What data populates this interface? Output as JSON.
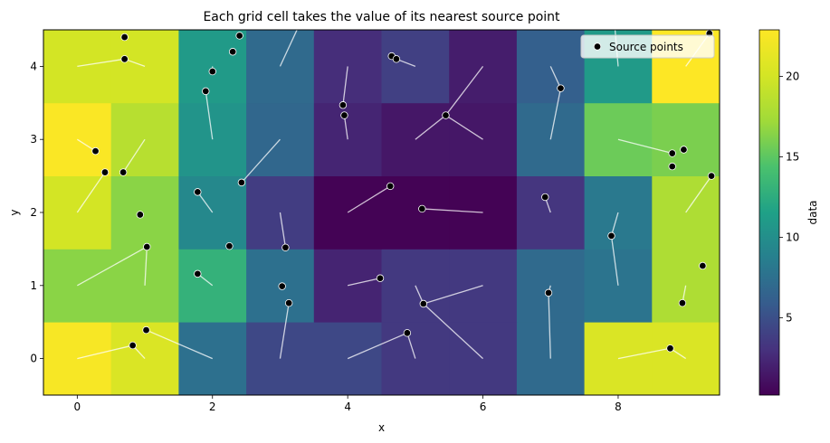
{
  "chart_data": {
    "type": "heatmap",
    "title": "Each grid cell takes the value of its nearest source point",
    "xlabel": "x",
    "ylabel": "y",
    "colorbar_label": "data",
    "colormap": "viridis",
    "xlim": [
      -0.5,
      9.5
    ],
    "ylim": [
      -0.5,
      4.5
    ],
    "clim": [
      0.2,
      22.9
    ],
    "x_ticks": [
      "0",
      "2",
      "4",
      "6",
      "8"
    ],
    "x_tick_values": [
      0,
      2,
      4,
      6,
      8
    ],
    "y_ticks": [
      "0",
      "1",
      "2",
      "3",
      "4"
    ],
    "y_tick_values": [
      0,
      1,
      2,
      3,
      4
    ],
    "colorbar_ticks": [
      "5",
      "10",
      "15",
      "20"
    ],
    "colorbar_tick_values": [
      5,
      10,
      15,
      20
    ],
    "grid": false,
    "legend": {
      "placement": "top-right",
      "entries": [
        "Source points"
      ]
    },
    "grid_values": [
      [
        22.5,
        20.5,
        7.5,
        4.5,
        4.5,
        3.5,
        3.5,
        7.0,
        20.5,
        20.5
      ],
      [
        16.5,
        16.5,
        13.0,
        7.5,
        2.2,
        3.5,
        3.5,
        7.0,
        7.8,
        18.0
      ],
      [
        20.0,
        16.5,
        9.5,
        3.8,
        0.3,
        0.3,
        0.3,
        3.3,
        8.2,
        18.0
      ],
      [
        22.7,
        18.5,
        10.5,
        6.8,
        2.3,
        1.5,
        1.5,
        7.0,
        15.5,
        16.0
      ],
      [
        20.0,
        20.0,
        11.0,
        7.0,
        2.8,
        4.0,
        1.8,
        6.2,
        11.0,
        22.9
      ]
    ],
    "source_points": [
      {
        "x": 0.7,
        "y": 4.4
      },
      {
        "x": 0.7,
        "y": 4.1
      },
      {
        "x": 2.4,
        "y": 4.42
      },
      {
        "x": 2.3,
        "y": 4.2
      },
      {
        "x": 2.0,
        "y": 3.93
      },
      {
        "x": 1.9,
        "y": 3.66
      },
      {
        "x": 4.65,
        "y": 4.14
      },
      {
        "x": 4.72,
        "y": 4.1
      },
      {
        "x": 3.93,
        "y": 3.47
      },
      {
        "x": 3.95,
        "y": 3.33
      },
      {
        "x": 7.15,
        "y": 3.7
      },
      {
        "x": 9.35,
        "y": 4.45
      },
      {
        "x": 5.45,
        "y": 3.33
      },
      {
        "x": 0.27,
        "y": 2.84
      },
      {
        "x": 0.41,
        "y": 2.55
      },
      {
        "x": 0.68,
        "y": 2.55
      },
      {
        "x": 8.8,
        "y": 2.81
      },
      {
        "x": 8.97,
        "y": 2.86
      },
      {
        "x": 8.8,
        "y": 2.63
      },
      {
        "x": 9.38,
        "y": 2.5
      },
      {
        "x": 2.43,
        "y": 2.41
      },
      {
        "x": 1.78,
        "y": 2.28
      },
      {
        "x": 4.63,
        "y": 2.36
      },
      {
        "x": 5.1,
        "y": 2.05
      },
      {
        "x": 6.92,
        "y": 2.21
      },
      {
        "x": 0.93,
        "y": 1.97
      },
      {
        "x": 7.9,
        "y": 1.68
      },
      {
        "x": 1.03,
        "y": 1.53
      },
      {
        "x": 2.25,
        "y": 1.54
      },
      {
        "x": 3.08,
        "y": 1.52
      },
      {
        "x": 9.25,
        "y": 1.27
      },
      {
        "x": 1.78,
        "y": 1.16
      },
      {
        "x": 3.03,
        "y": 0.99
      },
      {
        "x": 4.48,
        "y": 1.1
      },
      {
        "x": 6.97,
        "y": 0.9
      },
      {
        "x": 3.13,
        "y": 0.76
      },
      {
        "x": 5.12,
        "y": 0.75
      },
      {
        "x": 8.95,
        "y": 0.76
      },
      {
        "x": 1.02,
        "y": 0.39
      },
      {
        "x": 0.82,
        "y": 0.18
      },
      {
        "x": 4.88,
        "y": 0.35
      },
      {
        "x": 8.77,
        "y": 0.14
      }
    ],
    "connector_lines": [
      {
        "from": [
          0.0,
          4.0
        ],
        "to": [
          0.7,
          4.1
        ]
      },
      {
        "from": [
          1.0,
          4.0
        ],
        "to": [
          0.7,
          4.1
        ]
      },
      {
        "from": [
          2.0,
          4.0
        ],
        "to": [
          2.0,
          3.93
        ]
      },
      {
        "from": [
          2.0,
          3.0
        ],
        "to": [
          1.9,
          3.66
        ]
      },
      {
        "from": [
          3.0,
          4.0
        ],
        "to": [
          3.3,
          4.6
        ]
      },
      {
        "from": [
          4.0,
          4.0
        ],
        "to": [
          3.93,
          3.47
        ]
      },
      {
        "from": [
          4.0,
          3.0
        ],
        "to": [
          3.95,
          3.33
        ]
      },
      {
        "from": [
          5.0,
          4.0
        ],
        "to": [
          4.72,
          4.1
        ]
      },
      {
        "from": [
          5.0,
          3.0
        ],
        "to": [
          5.45,
          3.33
        ]
      },
      {
        "from": [
          6.0,
          4.0
        ],
        "to": [
          5.45,
          3.33
        ]
      },
      {
        "from": [
          6.0,
          3.0
        ],
        "to": [
          5.45,
          3.33
        ]
      },
      {
        "from": [
          7.0,
          4.0
        ],
        "to": [
          7.15,
          3.7
        ]
      },
      {
        "from": [
          7.0,
          3.0
        ],
        "to": [
          7.15,
          3.7
        ]
      },
      {
        "from": [
          8.0,
          4.0
        ],
        "to": [
          7.95,
          4.55
        ]
      },
      {
        "from": [
          9.0,
          4.0
        ],
        "to": [
          9.35,
          4.45
        ]
      },
      {
        "from": [
          0.0,
          3.0
        ],
        "to": [
          0.27,
          2.84
        ]
      },
      {
        "from": [
          1.0,
          3.0
        ],
        "to": [
          0.68,
          2.55
        ]
      },
      {
        "from": [
          0.0,
          2.0
        ],
        "to": [
          0.41,
          2.55
        ]
      },
      {
        "from": [
          3.0,
          3.0
        ],
        "to": [
          2.43,
          2.41
        ]
      },
      {
        "from": [
          2.0,
          2.0
        ],
        "to": [
          1.78,
          2.28
        ]
      },
      {
        "from": [
          8.0,
          3.0
        ],
        "to": [
          8.8,
          2.81
        ]
      },
      {
        "from": [
          9.0,
          2.0
        ],
        "to": [
          9.38,
          2.5
        ]
      },
      {
        "from": [
          4.0,
          2.0
        ],
        "to": [
          4.63,
          2.36
        ]
      },
      {
        "from": [
          6.0,
          2.0
        ],
        "to": [
          5.1,
          2.05
        ]
      },
      {
        "from": [
          7.0,
          2.0
        ],
        "to": [
          6.92,
          2.21
        ]
      },
      {
        "from": [
          3.0,
          2.0
        ],
        "to": [
          3.08,
          1.52
        ]
      },
      {
        "from": [
          8.0,
          2.0
        ],
        "to": [
          7.9,
          1.68
        ]
      },
      {
        "from": [
          8.0,
          1.0
        ],
        "to": [
          7.9,
          1.68
        ]
      },
      {
        "from": [
          0.0,
          1.0
        ],
        "to": [
          1.03,
          1.53
        ]
      },
      {
        "from": [
          1.0,
          1.0
        ],
        "to": [
          1.03,
          1.53
        ]
      },
      {
        "from": [
          2.0,
          1.0
        ],
        "to": [
          1.78,
          1.16
        ]
      },
      {
        "from": [
          3.0,
          0.0
        ],
        "to": [
          3.13,
          0.76
        ]
      },
      {
        "from": [
          4.0,
          1.0
        ],
        "to": [
          4.48,
          1.1
        ]
      },
      {
        "from": [
          5.0,
          1.0
        ],
        "to": [
          5.12,
          0.75
        ]
      },
      {
        "from": [
          6.0,
          1.0
        ],
        "to": [
          5.12,
          0.75
        ]
      },
      {
        "from": [
          6.0,
          0.0
        ],
        "to": [
          5.12,
          0.75
        ]
      },
      {
        "from": [
          7.0,
          1.0
        ],
        "to": [
          6.97,
          0.9
        ]
      },
      {
        "from": [
          7.0,
          0.0
        ],
        "to": [
          6.97,
          0.9
        ]
      },
      {
        "from": [
          9.0,
          1.0
        ],
        "to": [
          8.95,
          0.76
        ]
      },
      {
        "from": [
          0.0,
          0.0
        ],
        "to": [
          0.82,
          0.18
        ]
      },
      {
        "from": [
          1.0,
          0.0
        ],
        "to": [
          0.82,
          0.18
        ]
      },
      {
        "from": [
          2.0,
          0.0
        ],
        "to": [
          1.02,
          0.39
        ]
      },
      {
        "from": [
          4.0,
          0.0
        ],
        "to": [
          4.88,
          0.35
        ]
      },
      {
        "from": [
          5.0,
          0.0
        ],
        "to": [
          4.88,
          0.35
        ]
      },
      {
        "from": [
          8.0,
          0.0
        ],
        "to": [
          8.77,
          0.14
        ]
      },
      {
        "from": [
          9.0,
          0.0
        ],
        "to": [
          8.77,
          0.14
        ]
      }
    ]
  }
}
